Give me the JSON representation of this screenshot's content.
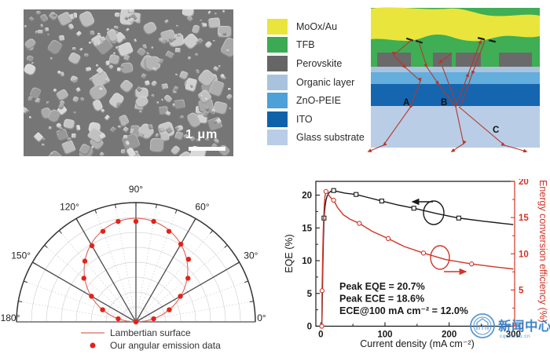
{
  "sem_panel": {
    "scale_bar_label": "1 μm",
    "background_color": "#767676",
    "particle_color": "#c9c9c9"
  },
  "device_panel": {
    "legend": [
      {
        "label": "MoOx/Au",
        "color": "#e9e53c"
      },
      {
        "label": "TFB",
        "color": "#3caa54"
      },
      {
        "label": "Perovskite",
        "color": "#666666"
      },
      {
        "label": "Organic layer",
        "color": "#a9c3de"
      },
      {
        "label": "ZnO-PEIE",
        "color": "#4da0d8"
      },
      {
        "label": "ITO",
        "color": "#0f62aa"
      },
      {
        "label": "Glass substrate",
        "color": "#b9cde8"
      }
    ],
    "layer_colors": {
      "moox_au": "#e9e53c",
      "tfb": "#3fae55",
      "perovskite": "#6a6a6a",
      "organic": "#a9c3de",
      "zno_peie": "#63aedd",
      "ito": "#1566ae",
      "glass": "#b9cde6"
    },
    "ray_labels": {
      "a": "A",
      "b": "B",
      "c": "C"
    },
    "ray_color": "#b6372c"
  },
  "watermark": {
    "text": "新闻中心",
    "subtext": "cqut.edu.cn",
    "color": "#2e7bc6"
  },
  "chart_data": [
    {
      "type": "line",
      "subtype": "polar-half",
      "angle_ticks_deg": [
        0,
        30,
        60,
        90,
        120,
        150,
        180
      ],
      "angle_minor_step_deg": 10,
      "radial_rings": 8,
      "lambertian_radius_fraction_of_outer": 0.868,
      "series": [
        {
          "name": "Lambertian surface",
          "type": "line",
          "color": "#e0635a",
          "model": "r = cos(theta-90deg), circle through origin"
        },
        {
          "name": "Our angular emission data",
          "type": "scatter",
          "color": "#e2231a",
          "marker": "filled-circle",
          "angles_deg": [
            0,
            10,
            20,
            30,
            40,
            50,
            60,
            70,
            80,
            90,
            100,
            110,
            120,
            130,
            140,
            150,
            160,
            170,
            180
          ],
          "r_over_lambertian": [
            1.0,
            1.0,
            1.0,
            0.99,
            1.02,
            1.03,
            1.0,
            0.99,
            1.0,
            0.97,
            1.0,
            0.99,
            0.98,
            1.0,
            1.02,
            0.99,
            1.0,
            1.0,
            1.0
          ]
        }
      ],
      "legend_position": "bottom"
    },
    {
      "type": "line",
      "xlabel": "Current density (mA cm⁻²)",
      "xlim": [
        0,
        300
      ],
      "x_ticks": [
        0,
        100,
        200,
        300
      ],
      "x_minor_ticks": [
        50,
        150,
        250
      ],
      "left_axis": {
        "label": "EQE (%)",
        "ticks": [
          0,
          5,
          10,
          15,
          20
        ],
        "lim": [
          0,
          22.1
        ],
        "color": "#1a1a1a"
      },
      "right_axis": {
        "label": "Energy conversion efficiency (%)",
        "ticks": [
          0,
          5,
          10,
          15,
          20
        ],
        "lim": [
          0,
          20
        ],
        "color": "#d13527"
      },
      "series": [
        {
          "name": "EQE",
          "axis": "left",
          "color": "#1a1a1a",
          "marker": "open-square",
          "curve": [
            [
              1.5,
              0
            ],
            [
              2,
              2
            ],
            [
              2.5,
              5
            ],
            [
              3,
              8.5
            ],
            [
              4,
              13
            ],
            [
              5,
              16.5
            ],
            [
              6.5,
              18.2
            ],
            [
              8,
              19.2
            ],
            [
              10,
              19.9
            ],
            [
              13,
              20.4
            ],
            [
              16,
              20.6
            ],
            [
              20,
              20.7
            ],
            [
              28,
              20.5
            ],
            [
              38,
              20.3
            ],
            [
              55,
              20.1
            ],
            [
              75,
              19.6
            ],
            [
              95,
              19.1
            ],
            [
              120,
              18.5
            ],
            [
              145,
              18
            ],
            [
              180,
              17.2
            ],
            [
              215,
              16.5
            ],
            [
              255,
              16
            ],
            [
              300,
              15.5
            ]
          ],
          "markers": [
            [
              5,
              16.5
            ],
            [
              20,
              20.7
            ],
            [
              55,
              20.1
            ],
            [
              95,
              19.1
            ],
            [
              145,
              18
            ],
            [
              215,
              16.5
            ]
          ]
        },
        {
          "name": "ECE",
          "axis": "right",
          "color": "#d13527",
          "marker": "open-circle",
          "curve": [
            [
              1.5,
              0
            ],
            [
              1.7,
              1.5
            ],
            [
              2,
              4.9
            ],
            [
              2.5,
              7.5
            ],
            [
              3,
              10
            ],
            [
              3.7,
              12.8
            ],
            [
              4.5,
              15
            ],
            [
              5.5,
              16.8
            ],
            [
              6.5,
              17.9
            ],
            [
              8,
              18.6
            ],
            [
              10,
              18.5
            ],
            [
              13,
              18
            ],
            [
              16,
              17.7
            ],
            [
              20,
              17.4
            ],
            [
              26,
              16.4
            ],
            [
              35,
              15.4
            ],
            [
              45,
              14.8
            ],
            [
              60,
              14.2
            ],
            [
              80,
              13.1
            ],
            [
              105,
              12.1
            ],
            [
              130,
              11
            ],
            [
              160,
              10.1
            ],
            [
              195,
              9.2
            ],
            [
              235,
              8.6
            ],
            [
              270,
              8.2
            ],
            [
              300,
              7.9
            ]
          ],
          "markers": [
            [
              1.5,
              0
            ],
            [
              2,
              4.9
            ],
            [
              8,
              18.6
            ],
            [
              20,
              17.4
            ],
            [
              60,
              14.2
            ],
            [
              105,
              12.1
            ],
            [
              160,
              10.1
            ],
            [
              235,
              8.6
            ]
          ]
        }
      ],
      "annotations": [
        "Peak EQE = 20.7%",
        "Peak ECE = 18.6%",
        "ECE@100 mA cm⁻² = 12.0%"
      ]
    }
  ]
}
